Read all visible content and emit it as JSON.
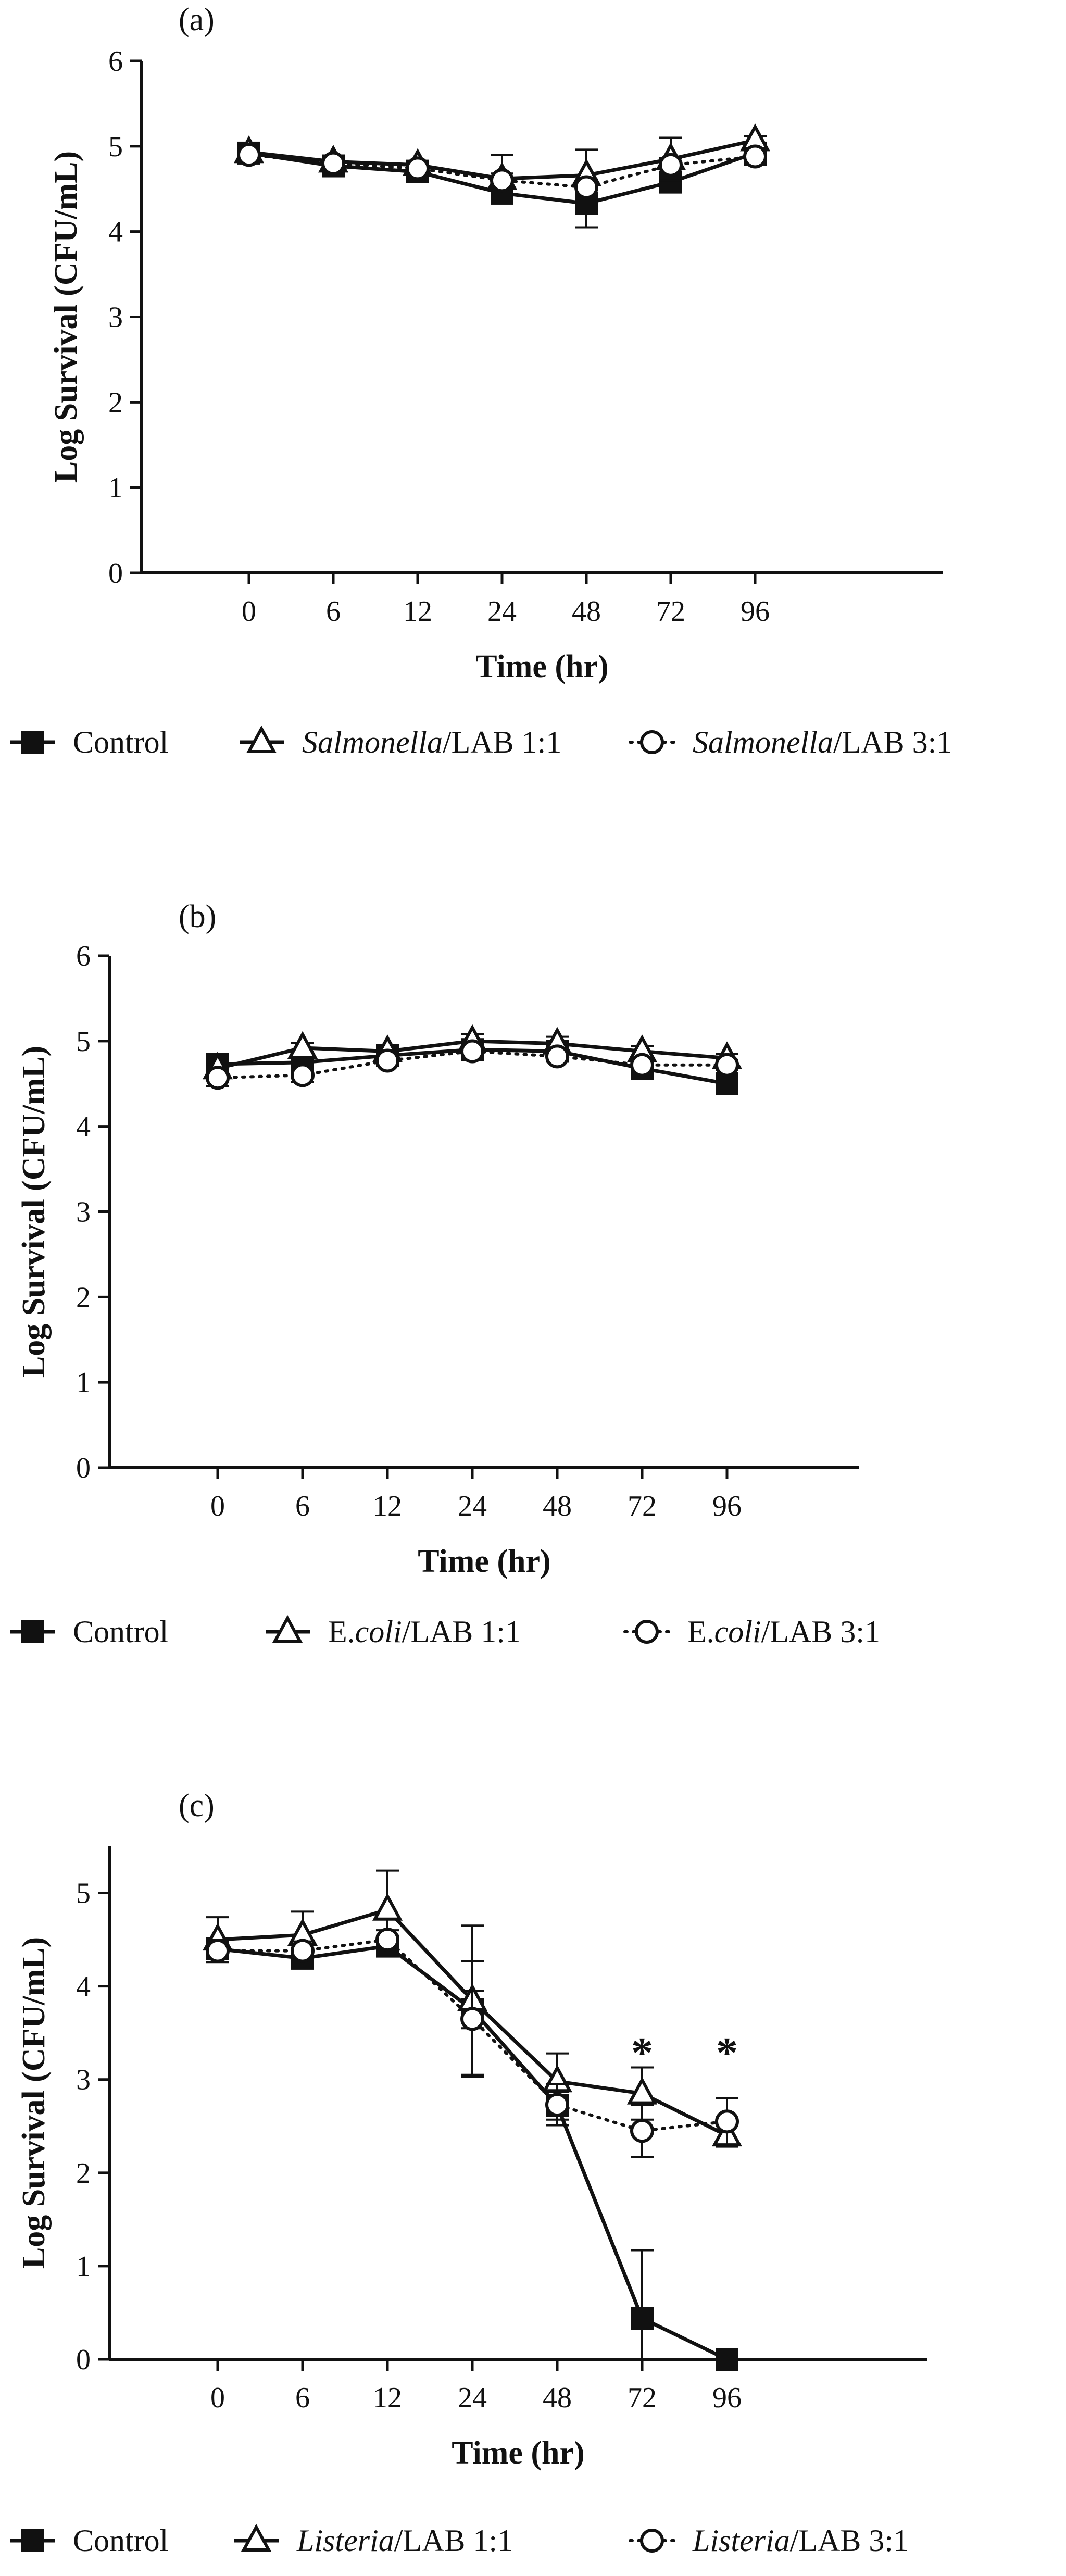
{
  "chart_data": [
    {
      "type": "line",
      "panel_label": "(a)",
      "title": "",
      "xlabel": "Time (hr)",
      "ylabel": "Log Survival (CFU/mL)",
      "categories": [
        "0",
        "6",
        "12",
        "24",
        "48",
        "72",
        "96"
      ],
      "ylim": [
        0,
        6
      ],
      "yticks": [
        "0",
        "1",
        "2",
        "3",
        "4",
        "5",
        "6"
      ],
      "grid": false,
      "legend_position": "bottom",
      "series": [
        {
          "name": "Control",
          "legend_pre": "",
          "legend_italic": "",
          "legend_post": "Control",
          "marker": "filled-square",
          "line": "solid",
          "values": [
            4.92,
            4.77,
            4.7,
            4.45,
            4.33,
            4.58,
            4.92
          ],
          "errors": [
            0.08,
            0.06,
            0.05,
            0.12,
            0.28,
            0.1,
            0.08
          ]
        },
        {
          "name": "Salmonella/LAB 1:1",
          "legend_pre": "",
          "legend_italic": "Salmonella",
          "legend_post": "/LAB 1:1",
          "marker": "open-triangle",
          "line": "solid",
          "values": [
            4.93,
            4.82,
            4.78,
            4.62,
            4.66,
            4.85,
            5.07
          ],
          "errors": [
            0.1,
            0.05,
            0.05,
            0.28,
            0.3,
            0.25,
            0.05
          ]
        },
        {
          "name": "Salmonella/LAB 3:1",
          "legend_pre": "",
          "legend_italic": "Salmonella",
          "legend_post": "/LAB 3:1",
          "marker": "open-circle",
          "line": "dotted",
          "values": [
            4.9,
            4.8,
            4.74,
            4.6,
            4.52,
            4.78,
            4.88
          ],
          "errors": [
            0.06,
            0.05,
            0.05,
            0.08,
            0.08,
            0.08,
            0.1
          ]
        }
      ],
      "annotations": []
    },
    {
      "type": "line",
      "panel_label": "(b)",
      "title": "",
      "xlabel": "Time (hr)",
      "ylabel": "Log Survival (CFU/mL)",
      "categories": [
        "0",
        "6",
        "12",
        "24",
        "48",
        "72",
        "96"
      ],
      "ylim": [
        0,
        6
      ],
      "yticks": [
        "0",
        "1",
        "2",
        "3",
        "4",
        "5",
        "6"
      ],
      "grid": false,
      "legend_position": "bottom",
      "series": [
        {
          "name": "Control",
          "legend_pre": "",
          "legend_italic": "",
          "legend_post": "Control",
          "marker": "filled-square",
          "line": "solid",
          "values": [
            4.73,
            4.75,
            4.83,
            4.9,
            4.88,
            4.68,
            4.5
          ],
          "errors": [
            0.06,
            0.05,
            0.05,
            0.05,
            0.06,
            0.06,
            0.06
          ]
        },
        {
          "name": "E.coli/LAB 1:1",
          "legend_pre": "E.",
          "legend_italic": "coli",
          "legend_post": "/LAB 1:1",
          "marker": "open-triangle",
          "line": "solid",
          "values": [
            4.68,
            4.92,
            4.88,
            5.0,
            4.97,
            4.88,
            4.8
          ],
          "errors": [
            0.05,
            0.06,
            0.06,
            0.08,
            0.08,
            0.06,
            0.05
          ]
        },
        {
          "name": "E.coli/LAB 3:1",
          "legend_pre": "E.",
          "legend_italic": "coli",
          "legend_post": "/LAB 3:1",
          "marker": "open-circle",
          "line": "dotted",
          "values": [
            4.57,
            4.6,
            4.77,
            4.88,
            4.82,
            4.72,
            4.72
          ],
          "errors": [
            0.1,
            0.08,
            0.05,
            0.05,
            0.06,
            0.06,
            0.06
          ]
        }
      ],
      "annotations": []
    },
    {
      "type": "line",
      "panel_label": "(c)",
      "title": "",
      "xlabel": "Time (hr)",
      "ylabel": "Log Survival (CFU/mL)",
      "categories": [
        "0",
        "6",
        "12",
        "24",
        "48",
        "72",
        "96"
      ],
      "ylim": [
        0,
        5.5
      ],
      "yticks": [
        "0",
        "1",
        "2",
        "3",
        "4",
        "5"
      ],
      "grid": false,
      "legend_position": "bottom",
      "series": [
        {
          "name": "Control",
          "legend_pre": "",
          "legend_italic": "",
          "legend_post": "Control",
          "marker": "filled-square",
          "line": "solid",
          "values": [
            4.4,
            4.3,
            4.43,
            3.75,
            2.72,
            0.44,
            0.0
          ],
          "errors": [
            0.1,
            0.1,
            0.1,
            0.2,
            0.15,
            0.73,
            0.03
          ]
        },
        {
          "name": "Listeria/LAB 1:1",
          "legend_pre": "",
          "legend_italic": "Listeria",
          "legend_post": "/LAB 1:1",
          "marker": "open-triangle",
          "line": "solid",
          "values": [
            4.5,
            4.55,
            4.82,
            3.85,
            2.98,
            2.85,
            2.4
          ],
          "errors": [
            0.24,
            0.25,
            0.42,
            0.8,
            0.3,
            0.28,
            0.12
          ]
        },
        {
          "name": "Listeria/LAB 3:1",
          "legend_pre": "",
          "legend_italic": "Listeria",
          "legend_post": "/LAB 3:1",
          "marker": "open-circle",
          "line": "dotted",
          "values": [
            4.38,
            4.38,
            4.5,
            3.65,
            2.73,
            2.45,
            2.55
          ],
          "errors": [
            0.12,
            0.1,
            0.1,
            0.62,
            0.22,
            0.28,
            0.25
          ]
        }
      ],
      "annotations": [
        {
          "text": "*",
          "category": "72",
          "y": 3.3
        },
        {
          "text": "*",
          "category": "96",
          "y": 3.3
        }
      ]
    }
  ]
}
